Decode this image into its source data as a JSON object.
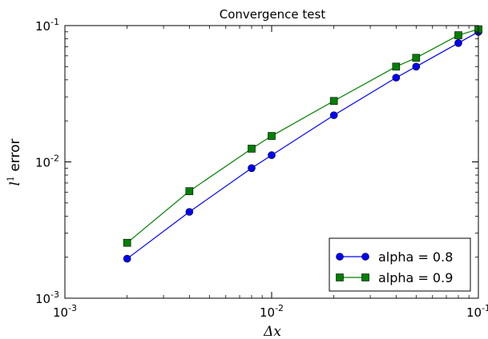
{
  "chart_data": {
    "type": "line",
    "title": "Convergence test",
    "xlabel": "Δx",
    "ylabel_base": "l",
    "ylabel_sup": "1",
    "ylabel_rest": " error",
    "xscale": "log",
    "yscale": "log",
    "xlim": [
      0.001,
      0.1
    ],
    "ylim": [
      0.001,
      0.1
    ],
    "x_ticks": [
      {
        "value": 0.001,
        "base": "10",
        "exp": "-3"
      },
      {
        "value": 0.01,
        "base": "10",
        "exp": "-2"
      },
      {
        "value": 0.1,
        "base": "10",
        "exp": "-1"
      }
    ],
    "y_ticks": [
      {
        "value": 0.001,
        "base": "10",
        "exp": "-3"
      },
      {
        "value": 0.01,
        "base": "10",
        "exp": "-2"
      },
      {
        "value": 0.1,
        "base": "10",
        "exp": "-1"
      }
    ],
    "grid": false,
    "legend_position": "bottom-right",
    "series": [
      {
        "name": "alpha = 0.8",
        "color": "#0000ff",
        "marker": "circle",
        "x": [
          0.002,
          0.004,
          0.008,
          0.01,
          0.02,
          0.04,
          0.05,
          0.08,
          0.1
        ],
        "y": [
          0.00195,
          0.0043,
          0.009,
          0.0112,
          0.022,
          0.0415,
          0.05,
          0.0745,
          0.09
        ]
      },
      {
        "name": "alpha = 0.9",
        "color": "#008000",
        "marker": "square",
        "x": [
          0.002,
          0.004,
          0.008,
          0.01,
          0.02,
          0.04,
          0.05,
          0.08,
          0.1
        ],
        "y": [
          0.00255,
          0.0061,
          0.0125,
          0.0155,
          0.028,
          0.05,
          0.058,
          0.085,
          0.094
        ]
      }
    ]
  }
}
